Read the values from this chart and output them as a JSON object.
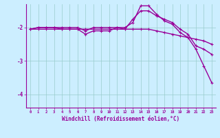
{
  "xlabel": "Windchill (Refroidissement éolien,°C)",
  "background_color": "#cceeff",
  "line_color": "#990099",
  "grid_color": "#99cccc",
  "x_hours": [
    0,
    1,
    2,
    3,
    4,
    5,
    6,
    7,
    8,
    9,
    10,
    11,
    12,
    13,
    14,
    15,
    16,
    17,
    18,
    19,
    20,
    21,
    22,
    23
  ],
  "line1": [
    -2.05,
    -2.05,
    -2.05,
    -2.05,
    -2.05,
    -2.05,
    -2.05,
    -2.05,
    -2.05,
    -2.05,
    -2.05,
    -2.05,
    -2.05,
    -2.05,
    -2.05,
    -2.05,
    -2.1,
    -2.15,
    -2.2,
    -2.25,
    -2.3,
    -2.35,
    -2.4,
    -2.5
  ],
  "line2": [
    -2.05,
    -2.0,
    -2.0,
    -2.0,
    -2.0,
    -2.0,
    -2.0,
    -2.1,
    -2.0,
    -2.0,
    -2.0,
    -2.0,
    -2.05,
    -1.75,
    -1.5,
    -1.5,
    -1.65,
    -1.75,
    -1.85,
    -2.05,
    -2.2,
    -2.55,
    -2.65,
    -2.8
  ],
  "line3": [
    -2.05,
    -2.0,
    -2.0,
    -2.0,
    -2.05,
    -2.05,
    -2.05,
    -2.2,
    -2.1,
    -2.1,
    -2.1,
    -2.0,
    -2.0,
    -1.85,
    -1.35,
    -1.35,
    -1.6,
    -1.8,
    -1.9,
    -2.15,
    -2.3,
    -2.65,
    -3.15,
    -3.65
  ],
  "ylim": [
    -4.4,
    -1.3
  ],
  "xlim": [
    -0.5,
    23.5
  ],
  "yticks": [
    -4,
    -3,
    -2
  ],
  "xticks": [
    0,
    1,
    2,
    3,
    4,
    5,
    6,
    7,
    8,
    9,
    10,
    11,
    12,
    13,
    14,
    15,
    16,
    17,
    18,
    19,
    20,
    21,
    22,
    23
  ]
}
